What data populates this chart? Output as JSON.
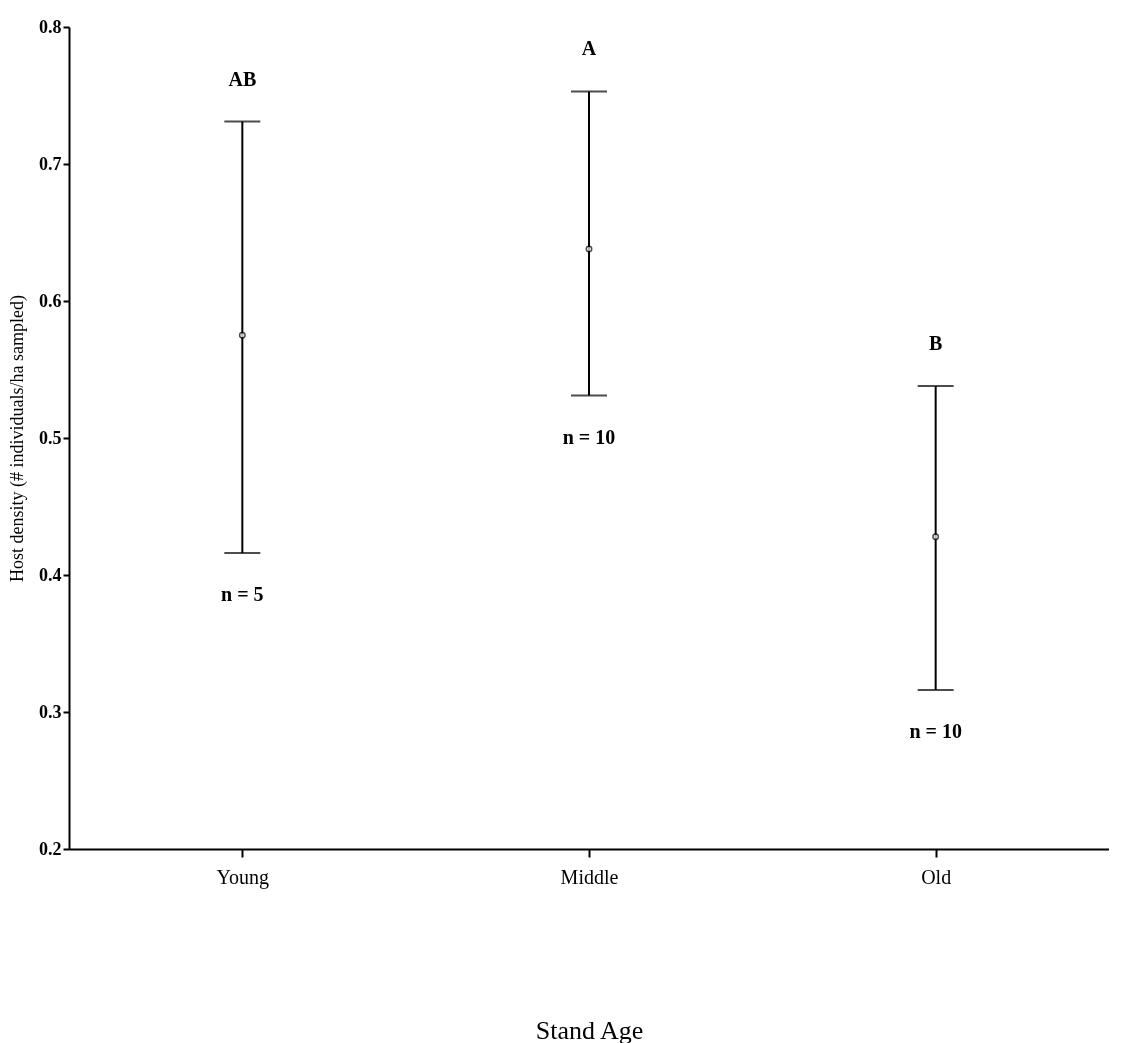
{
  "chart_data": {
    "type": "scatter",
    "xlabel": "Stand Age",
    "ylabel": "Host density (# individuals/ha sampled)",
    "categories": [
      "Young",
      "Middle",
      "Old"
    ],
    "series": [
      {
        "color": "#000000",
        "values": [
          0.575,
          0.638,
          0.428
        ],
        "errors": [
          [
            0.416,
            0.731
          ],
          [
            0.531,
            0.753
          ],
          [
            0.316,
            0.538
          ]
        ]
      }
    ],
    "marker": "circle",
    "ylim": [
      0.2,
      0.8
    ],
    "yticks": [
      0.2,
      0.3,
      0.4,
      0.5,
      0.6,
      0.7,
      0.8
    ],
    "annotations": [
      "AB",
      "A",
      "B",
      "n = 5",
      "n = 10",
      "n = 10"
    ]
  }
}
